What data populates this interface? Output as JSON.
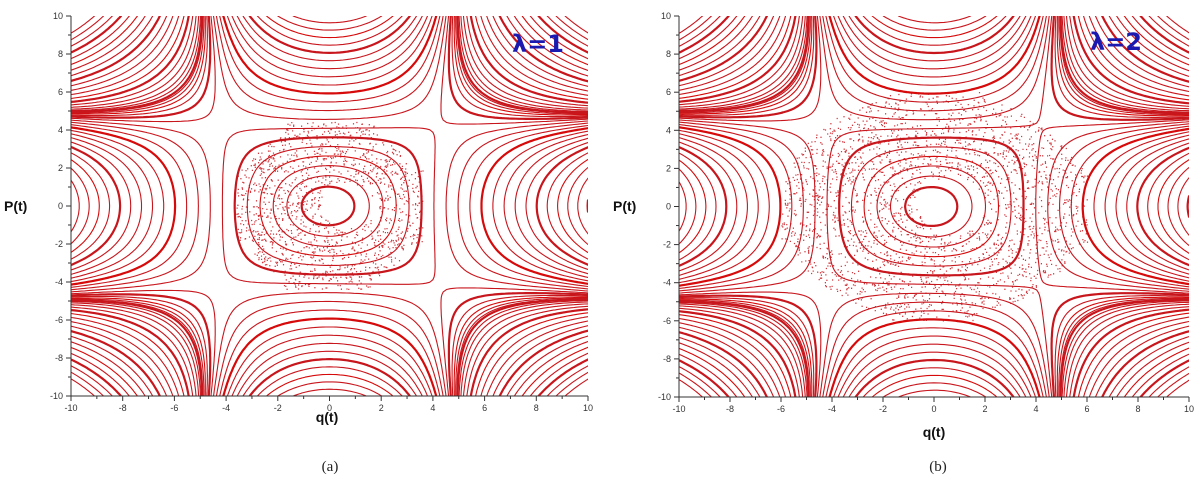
{
  "colors": {
    "trajectory": "#c8161d",
    "trajectory_dense": "#d60a0a",
    "axis": "#333333",
    "annotation": "#1a1ab0"
  },
  "chart_data": [
    {
      "type": "line",
      "subtitle": "(a)",
      "annotation": "λ=1",
      "lambda": 1,
      "xlabel": "q(t)",
      "ylabel": "P(t)",
      "xlim": [
        -10,
        10
      ],
      "ylim": [
        -10,
        10
      ],
      "xticks": [
        "-10",
        "-8",
        "-6",
        "-4",
        "-2",
        "0",
        "2",
        "4",
        "6",
        "8",
        "10"
      ],
      "yticks": [
        "10",
        "8",
        "6",
        "4",
        "2",
        "0",
        "-2",
        "-4",
        "-6",
        "-8",
        "-10"
      ],
      "grid": false,
      "legend": "none"
    },
    {
      "type": "line",
      "subtitle": "(b)",
      "annotation": "λ=2",
      "lambda": 2,
      "xlabel": "q(t)",
      "ylabel": "P(t)",
      "xlim": [
        -10,
        10
      ],
      "ylim": [
        -10,
        10
      ],
      "xticks": [
        "-10",
        "-8",
        "-6",
        "-4",
        "-2",
        "0",
        "2",
        "4",
        "6",
        "8",
        "10"
      ],
      "yticks": [
        "10",
        "8",
        "6",
        "4",
        "2",
        "0",
        "-2",
        "-4",
        "-6",
        "-8",
        "-10"
      ],
      "grid": false,
      "legend": "none"
    }
  ]
}
